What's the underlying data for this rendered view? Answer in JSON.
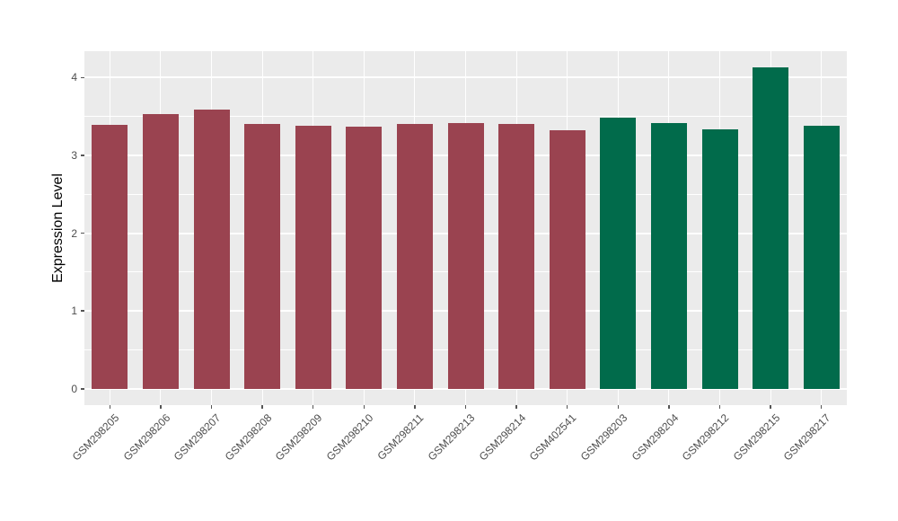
{
  "chart_data": {
    "type": "bar",
    "title": "",
    "xlabel": "",
    "ylabel": "Expression Level",
    "categories": [
      "GSM298205",
      "GSM298206",
      "GSM298207",
      "GSM298208",
      "GSM298209",
      "GSM298210",
      "GSM298211",
      "GSM298213",
      "GSM298214",
      "GSM402541",
      "GSM298203",
      "GSM298204",
      "GSM298212",
      "GSM298215",
      "GSM298217"
    ],
    "values": [
      3.39,
      3.53,
      3.59,
      3.41,
      3.38,
      3.37,
      3.41,
      3.42,
      3.4,
      3.32,
      3.48,
      3.42,
      3.33,
      4.13,
      3.38
    ],
    "groups": [
      "group1",
      "group1",
      "group1",
      "group1",
      "group1",
      "group1",
      "group1",
      "group1",
      "group1",
      "group1",
      "group2",
      "group2",
      "group2",
      "group2",
      "group2"
    ],
    "group_colors": {
      "group1": "#9A4350",
      "group2": "#016B4B"
    },
    "ylim": [
      -0.21,
      4.34
    ],
    "y_breaks": [
      0,
      1,
      2,
      3,
      4
    ],
    "y_minor_breaks": [
      0.5,
      1.5,
      2.5,
      3.5
    ],
    "legend": "none",
    "grid": true,
    "panel_background": "#EBEBEB",
    "grid_color": "#FFFFFF",
    "axis_text_color": "#4D4D4D",
    "tick_color": "#555555",
    "x_label_angle": 45
  }
}
